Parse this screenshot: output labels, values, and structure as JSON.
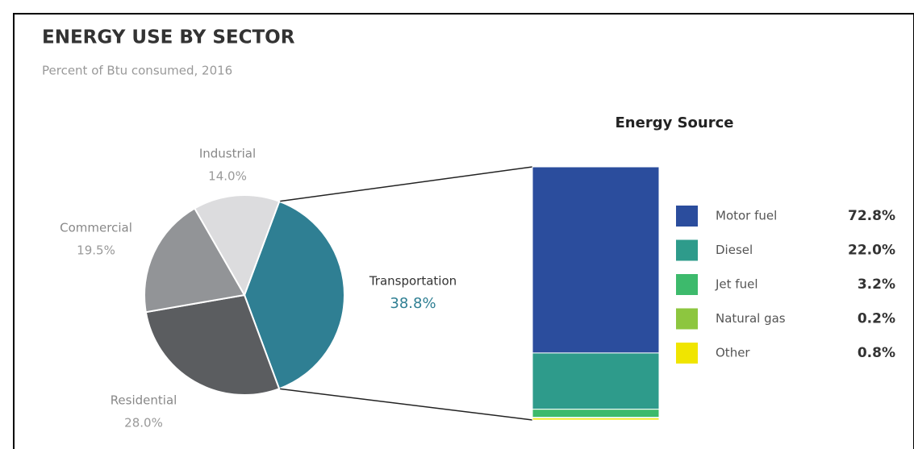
{
  "chart_data": [
    {
      "type": "pie",
      "title": "ENERGY USE BY SECTOR",
      "subtitle": "Percent of Btu consumed, 2016",
      "categories": [
        "Transportation",
        "Residential",
        "Commercial",
        "Industrial"
      ],
      "values": [
        38.8,
        28.0,
        19.5,
        14.0
      ],
      "value_labels": [
        "38.8%",
        "28.0%",
        "19.5%",
        "14.0%"
      ],
      "colors": [
        "#2f7f93",
        "#5b5d60",
        "#929497",
        "#dcdcde"
      ]
    },
    {
      "type": "stacked_bar",
      "title": "Energy Source",
      "series": [
        {
          "name": "Motor fuel",
          "color": "#2b4d9d",
          "values": [
            72.8
          ],
          "value_labels": [
            "72.8%"
          ]
        },
        {
          "name": "Diesel",
          "color": "#2e9b8b",
          "values": [
            22.0
          ],
          "value_labels": [
            "22.0%"
          ]
        },
        {
          "name": "Jet fuel",
          "color": "#3dba6c",
          "values": [
            3.2
          ],
          "value_labels": [
            "3.2%"
          ]
        },
        {
          "name": "Natural gas",
          "color": "#8dc63f",
          "values": [
            0.2
          ],
          "value_labels": [
            "0.2%"
          ]
        },
        {
          "name": "Other",
          "color": "#f0e500",
          "values": [
            0.8
          ],
          "value_labels": [
            "0.8%"
          ]
        }
      ]
    }
  ]
}
